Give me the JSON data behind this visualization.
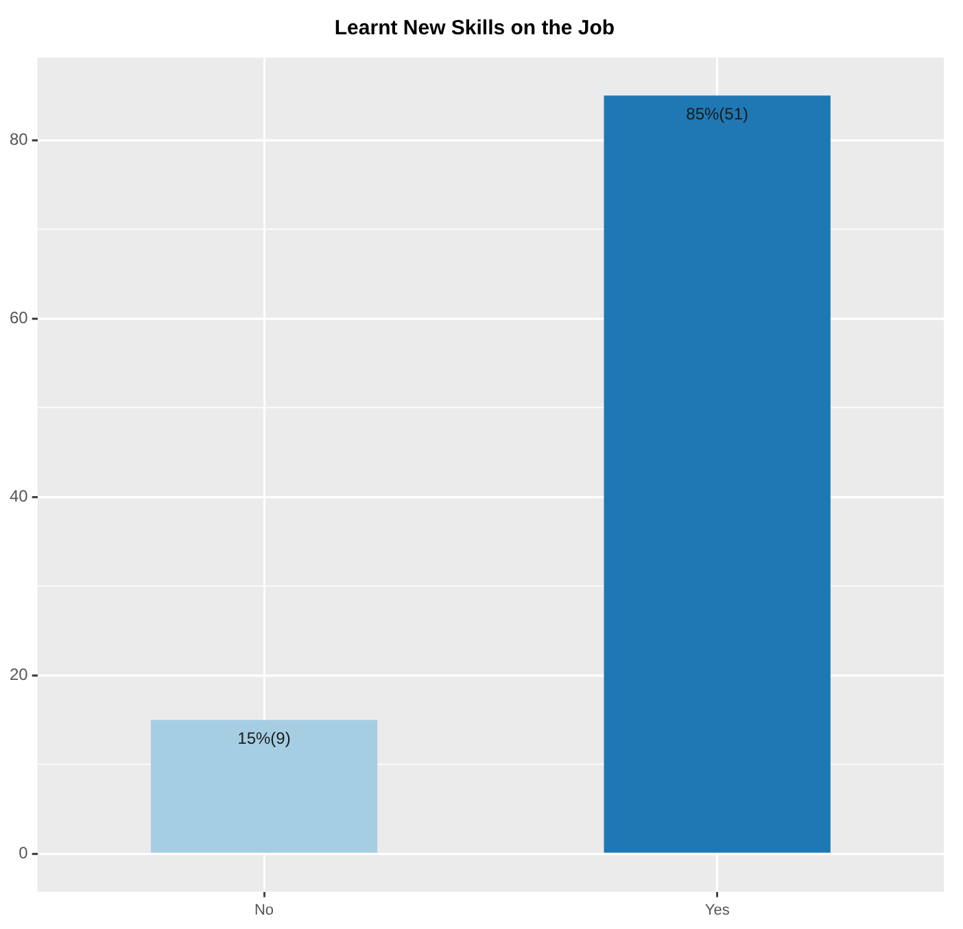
{
  "chart_data": {
    "type": "bar",
    "title": "Learnt New Skills on the Job",
    "categories": [
      "No",
      "Yes"
    ],
    "values": [
      15,
      85
    ],
    "colors": [
      "#a6cee3",
      "#1f78b4"
    ],
    "value_labels": [
      "15%(9)",
      "85%(51)"
    ],
    "ylim": [
      -4.25,
      89.25
    ],
    "yticks": [
      0,
      {
        "value": 10,
        "label": null
      },
      20,
      {
        "value": 30,
        "label": null
      },
      40,
      {
        "value": 50,
        "label": null
      },
      60,
      {
        "value": 70,
        "label": null
      },
      80
    ],
    "grid": true,
    "legend": false
  }
}
